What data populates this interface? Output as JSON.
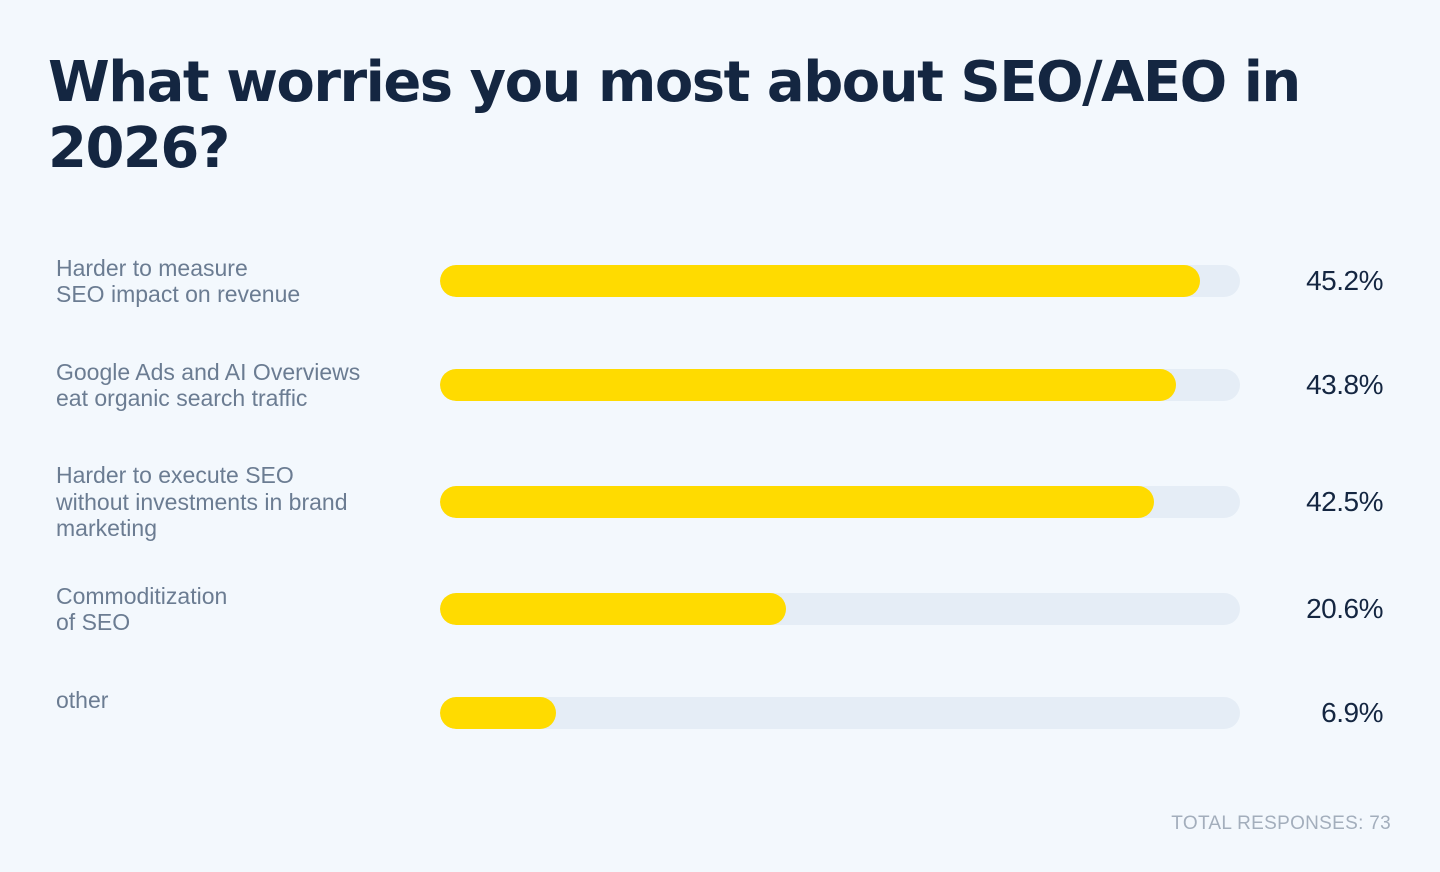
{
  "chart_data": {
    "type": "bar",
    "orientation": "horizontal",
    "title": "What worries you most about SEO/AEO in 2026?",
    "categories": [
      "Harder to measure\nSEO impact on revenue",
      "Google Ads and AI Overviews\neat organic search traffic",
      "Harder to execute SEO\nwithout investments in brand\nmarketing",
      "Commoditization\nof SEO",
      "other"
    ],
    "values": [
      45.2,
      43.8,
      42.5,
      20.6,
      6.9
    ],
    "value_labels": [
      "45.2%",
      "43.8%",
      "42.5%",
      "20.6%",
      "6.9%"
    ],
    "unit": "%",
    "grid": false,
    "legend": "none",
    "colors": {
      "bar": "#ffdb00",
      "track": "#e5edf6",
      "background": "#f3f8fd",
      "title": "#142641",
      "label": "#6b7c92",
      "value": "#142641",
      "footer": "#a3aebc"
    }
  },
  "footer": {
    "total_responses": "TOTAL RESPONSES: 73"
  }
}
